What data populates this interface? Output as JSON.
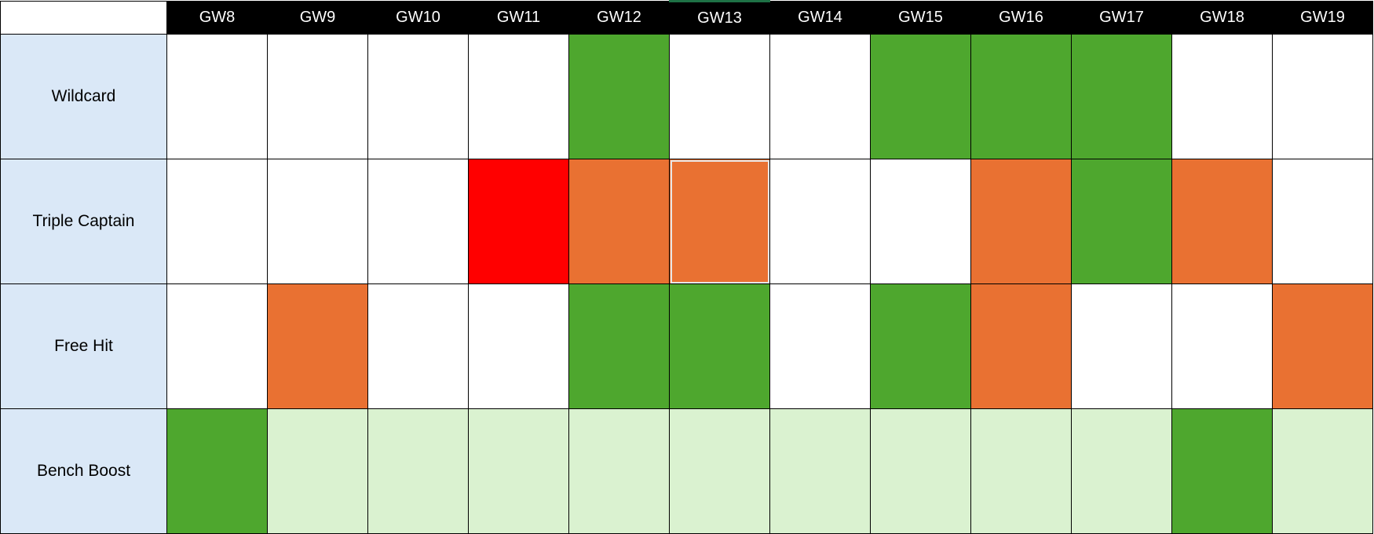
{
  "colors": {
    "empty": "#ffffff",
    "green": "#4ea72e",
    "orange": "#e97132",
    "red": "#ff0000",
    "light_green": "#daf2d0",
    "label_bg": "#dae8f7",
    "header_bg": "#000000",
    "header_text": "#ffffff"
  },
  "gameweeks": [
    "GW8",
    "GW9",
    "GW10",
    "GW11",
    "GW12",
    "GW13",
    "GW14",
    "GW15",
    "GW16",
    "GW17",
    "GW18",
    "GW19"
  ],
  "rows": [
    {
      "label": "Wildcard",
      "cells": [
        "empty",
        "empty",
        "empty",
        "empty",
        "green",
        "empty",
        "empty",
        "green",
        "green",
        "green",
        "empty",
        "empty"
      ]
    },
    {
      "label": "Triple Captain",
      "cells": [
        "empty",
        "empty",
        "empty",
        "red",
        "orange",
        "orange",
        "empty",
        "empty",
        "orange",
        "green",
        "orange",
        "empty"
      ]
    },
    {
      "label": "Free Hit",
      "cells": [
        "empty",
        "orange",
        "empty",
        "empty",
        "green",
        "green",
        "empty",
        "green",
        "orange",
        "empty",
        "empty",
        "orange"
      ]
    },
    {
      "label": "Bench Boost",
      "cells": [
        "green",
        "light_green",
        "light_green",
        "light_green",
        "light_green",
        "light_green",
        "light_green",
        "light_green",
        "light_green",
        "light_green",
        "green",
        "light_green"
      ]
    }
  ]
}
